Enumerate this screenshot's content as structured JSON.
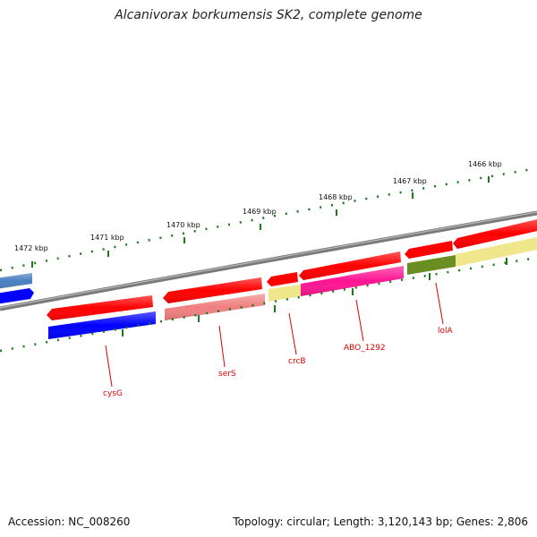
{
  "title": "Alcanivorax borkumensis SK2, complete genome",
  "footer": {
    "accession": "Accession: NC_008260",
    "stats": "Topology: circular; Length: 3,120,143 bp; Genes: 2,806"
  },
  "colors": {
    "backbone": "#7a7a7a",
    "tick": "#1a7a1a",
    "label": "#e00000",
    "gene_red": "#ff0000",
    "gene_blue": "#0000ff",
    "gene_steel": "#4a7fc0",
    "gene_salmon": "#f08080",
    "gene_yellow": "#f0e68c",
    "gene_magenta": "#ff1493",
    "gene_olive": "#6b8e23"
  },
  "scale_labels": [
    "1472 kbp",
    "1471 kbp",
    "1470 kbp",
    "1469 kbp",
    "1468 kbp",
    "1467 kbp",
    "1466 kbp"
  ],
  "gene_labels": [
    "cysG",
    "serS",
    "crcB",
    "ABO_1292",
    "lolA"
  ]
}
